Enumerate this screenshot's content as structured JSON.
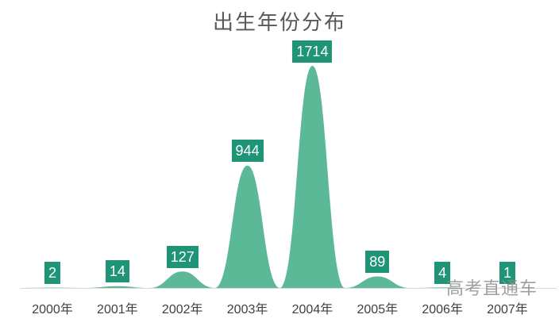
{
  "chart_data": {
    "type": "area",
    "title": "出生年份分布",
    "categories": [
      "2000年",
      "2001年",
      "2002年",
      "2003年",
      "2004年",
      "2005年",
      "2006年",
      "2007年"
    ],
    "values": [
      2,
      14,
      127,
      944,
      1714,
      89,
      4,
      1
    ],
    "xlabel": "",
    "ylabel": "",
    "ylim": [
      0,
      1714
    ],
    "grid": false,
    "legend": "none",
    "data_labels": "value badge above each peak",
    "curve_style": "smooth bell per category, zero between categories"
  },
  "watermark": {
    "text": "高考直通车"
  },
  "colors": {
    "background": "#ffffff",
    "area_fill": "#5cb998",
    "label_badge_bg": "#1f9477",
    "label_badge_text": "#ffffff",
    "title_text": "#595959",
    "axis_label_text": "#3f3f3f",
    "axis_line": "#d9d9d9",
    "watermark_text": "#8f8f8f"
  }
}
